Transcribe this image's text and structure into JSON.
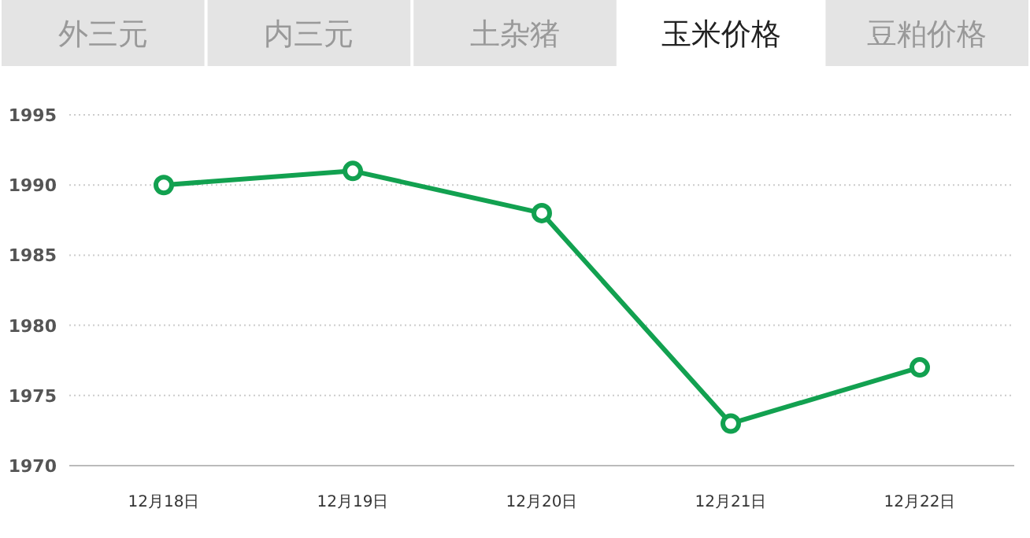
{
  "chart_data": {
    "type": "line",
    "title": "玉米价格",
    "annotations": [
      "外三元",
      "内三元",
      "土杂猪",
      "豆粕价格"
    ],
    "categories": [
      "12月18日",
      "12月19日",
      "12月20日",
      "12月21日",
      "12月22日"
    ],
    "series": [
      {
        "color": "#12a150",
        "values": [
          1990,
          1991,
          1988,
          1973,
          1977
        ]
      }
    ],
    "ylim": [
      1970,
      1995
    ],
    "yticks": [
      1970,
      1975,
      1980,
      1985,
      1990,
      1995
    ],
    "grid": "y",
    "marker": "circle",
    "line_style": "solid"
  }
}
